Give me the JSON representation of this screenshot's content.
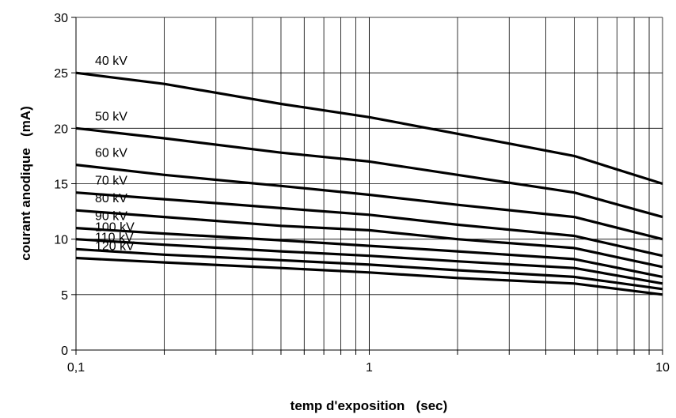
{
  "chart_data": {
    "type": "line",
    "title": "",
    "xlabel": "temp d'exposition   (sec)",
    "ylabel": "courant anodique   (mA)",
    "xscale": "log",
    "xlim": [
      0.1,
      10
    ],
    "ylim": [
      0,
      30
    ],
    "x_ticks": [
      0.1,
      1,
      10
    ],
    "x_tick_labels": [
      "0,1",
      "1",
      "10"
    ],
    "y_ticks": [
      0,
      5,
      10,
      15,
      20,
      25,
      30
    ],
    "y_tick_labels": [
      "0",
      "5",
      "10",
      "15",
      "20",
      "25",
      "30"
    ],
    "grid": true,
    "line_color": "#000000",
    "x": [
      0.1,
      0.2,
      0.5,
      1,
      2,
      5,
      10
    ],
    "series": [
      {
        "name": "40 kV",
        "values": [
          25.0,
          24.0,
          22.2,
          21.0,
          19.5,
          17.5,
          15.0
        ]
      },
      {
        "name": "50 kV",
        "values": [
          20.0,
          19.1,
          17.8,
          17.0,
          15.8,
          14.2,
          12.0
        ]
      },
      {
        "name": "60 kV",
        "values": [
          16.7,
          15.8,
          14.8,
          14.0,
          13.1,
          12.0,
          10.0
        ]
      },
      {
        "name": "70 kV",
        "values": [
          14.2,
          13.6,
          12.8,
          12.2,
          11.3,
          10.3,
          8.5
        ]
      },
      {
        "name": "80 kV",
        "values": [
          12.6,
          12.0,
          11.2,
          10.8,
          10.0,
          9.2,
          7.5
        ]
      },
      {
        "name": "90 kV",
        "values": [
          11.0,
          10.5,
          9.9,
          9.4,
          8.9,
          8.2,
          6.6
        ]
      },
      {
        "name": "100 kV",
        "values": [
          10.0,
          9.5,
          8.9,
          8.5,
          8.0,
          7.4,
          6.0
        ]
      },
      {
        "name": "110 kV",
        "values": [
          9.1,
          8.6,
          8.1,
          7.7,
          7.2,
          6.6,
          5.5
        ]
      },
      {
        "name": "120 kV",
        "values": [
          8.3,
          7.9,
          7.4,
          7.0,
          6.5,
          6.0,
          5.0
        ]
      }
    ]
  }
}
